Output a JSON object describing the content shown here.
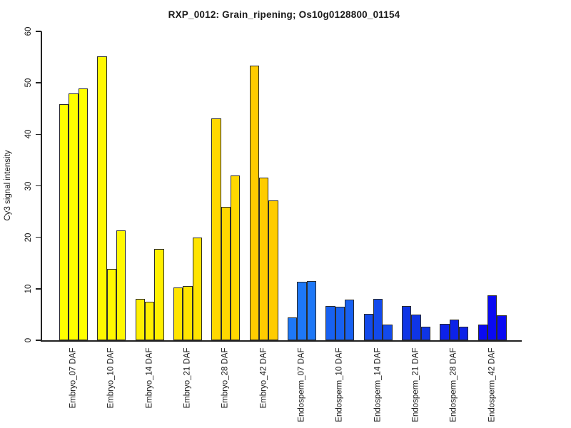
{
  "chart_data": {
    "type": "bar",
    "title": "RXP_0012: Grain_ripening; Os10g0128800_01154",
    "xlabel": "",
    "ylabel": "Cy3 signal intensity",
    "ylim": [
      0,
      60
    ],
    "yticks": [
      0,
      10,
      20,
      30,
      40,
      50,
      60
    ],
    "grid": false,
    "legend": null,
    "bars_per_category": 3,
    "categories": [
      "Embryo_07 DAF",
      "Embryo_10 DAF",
      "Embryo_14 DAF",
      "Embryo_21 DAF",
      "Embryo_28 DAF",
      "Embryo_42 DAF",
      "Endosperm_07 DAF",
      "Endosperm_10 DAF",
      "Endosperm_14 DAF",
      "Endosperm_21 DAF",
      "Endosperm_28 DAF",
      "Endosperm_42 DAF"
    ],
    "values": [
      [
        45.9,
        48.0,
        48.9
      ],
      [
        55.2,
        13.9,
        21.3
      ],
      [
        8.1,
        7.5,
        17.8
      ],
      [
        10.3,
        10.5,
        19.9
      ],
      [
        43.1,
        25.9,
        32.0
      ],
      [
        53.4,
        31.6,
        27.1
      ],
      [
        4.4,
        11.4,
        11.5
      ],
      [
        6.7,
        6.5,
        7.9
      ],
      [
        5.1,
        8.0,
        3.0
      ],
      [
        6.7,
        5.0,
        2.7
      ],
      [
        3.2,
        4.0,
        2.6
      ],
      [
        3.1,
        8.7,
        4.9
      ]
    ],
    "category_colors": [
      "#FFFF00",
      "#FFF800",
      "#FFF000",
      "#FFE400",
      "#FFD800",
      "#FFCC00",
      "#1E78F7",
      "#1861F1",
      "#134AEB",
      "#0F35E6",
      "#0D22E8",
      "#0A0AF2"
    ],
    "bar_border_color": "#2b2b2b",
    "axis_color": "#222222",
    "text_color": "#1a1a1a"
  }
}
